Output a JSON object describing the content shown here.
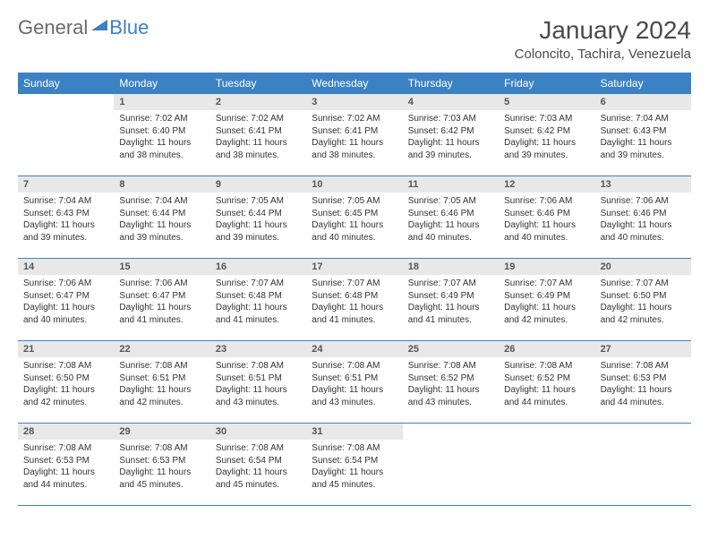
{
  "logo": {
    "text1": "General",
    "text2": "Blue"
  },
  "title": "January 2024",
  "location": "Coloncito, Tachira, Venezuela",
  "colors": {
    "header_bg": "#3b82c4",
    "header_text": "#ffffff",
    "daynum_bg": "#e8e8e8",
    "border": "#3b82c4",
    "logo_gray": "#6b6b6b",
    "logo_blue": "#3b82c4"
  },
  "weekdays": [
    "Sunday",
    "Monday",
    "Tuesday",
    "Wednesday",
    "Thursday",
    "Friday",
    "Saturday"
  ],
  "leading_blanks": 1,
  "days": [
    {
      "n": 1,
      "sunrise": "7:02 AM",
      "sunset": "6:40 PM",
      "daylight": "11 hours and 38 minutes."
    },
    {
      "n": 2,
      "sunrise": "7:02 AM",
      "sunset": "6:41 PM",
      "daylight": "11 hours and 38 minutes."
    },
    {
      "n": 3,
      "sunrise": "7:02 AM",
      "sunset": "6:41 PM",
      "daylight": "11 hours and 38 minutes."
    },
    {
      "n": 4,
      "sunrise": "7:03 AM",
      "sunset": "6:42 PM",
      "daylight": "11 hours and 39 minutes."
    },
    {
      "n": 5,
      "sunrise": "7:03 AM",
      "sunset": "6:42 PM",
      "daylight": "11 hours and 39 minutes."
    },
    {
      "n": 6,
      "sunrise": "7:04 AM",
      "sunset": "6:43 PM",
      "daylight": "11 hours and 39 minutes."
    },
    {
      "n": 7,
      "sunrise": "7:04 AM",
      "sunset": "6:43 PM",
      "daylight": "11 hours and 39 minutes."
    },
    {
      "n": 8,
      "sunrise": "7:04 AM",
      "sunset": "6:44 PM",
      "daylight": "11 hours and 39 minutes."
    },
    {
      "n": 9,
      "sunrise": "7:05 AM",
      "sunset": "6:44 PM",
      "daylight": "11 hours and 39 minutes."
    },
    {
      "n": 10,
      "sunrise": "7:05 AM",
      "sunset": "6:45 PM",
      "daylight": "11 hours and 40 minutes."
    },
    {
      "n": 11,
      "sunrise": "7:05 AM",
      "sunset": "6:46 PM",
      "daylight": "11 hours and 40 minutes."
    },
    {
      "n": 12,
      "sunrise": "7:06 AM",
      "sunset": "6:46 PM",
      "daylight": "11 hours and 40 minutes."
    },
    {
      "n": 13,
      "sunrise": "7:06 AM",
      "sunset": "6:46 PM",
      "daylight": "11 hours and 40 minutes."
    },
    {
      "n": 14,
      "sunrise": "7:06 AM",
      "sunset": "6:47 PM",
      "daylight": "11 hours and 40 minutes."
    },
    {
      "n": 15,
      "sunrise": "7:06 AM",
      "sunset": "6:47 PM",
      "daylight": "11 hours and 41 minutes."
    },
    {
      "n": 16,
      "sunrise": "7:07 AM",
      "sunset": "6:48 PM",
      "daylight": "11 hours and 41 minutes."
    },
    {
      "n": 17,
      "sunrise": "7:07 AM",
      "sunset": "6:48 PM",
      "daylight": "11 hours and 41 minutes."
    },
    {
      "n": 18,
      "sunrise": "7:07 AM",
      "sunset": "6:49 PM",
      "daylight": "11 hours and 41 minutes."
    },
    {
      "n": 19,
      "sunrise": "7:07 AM",
      "sunset": "6:49 PM",
      "daylight": "11 hours and 42 minutes."
    },
    {
      "n": 20,
      "sunrise": "7:07 AM",
      "sunset": "6:50 PM",
      "daylight": "11 hours and 42 minutes."
    },
    {
      "n": 21,
      "sunrise": "7:08 AM",
      "sunset": "6:50 PM",
      "daylight": "11 hours and 42 minutes."
    },
    {
      "n": 22,
      "sunrise": "7:08 AM",
      "sunset": "6:51 PM",
      "daylight": "11 hours and 42 minutes."
    },
    {
      "n": 23,
      "sunrise": "7:08 AM",
      "sunset": "6:51 PM",
      "daylight": "11 hours and 43 minutes."
    },
    {
      "n": 24,
      "sunrise": "7:08 AM",
      "sunset": "6:51 PM",
      "daylight": "11 hours and 43 minutes."
    },
    {
      "n": 25,
      "sunrise": "7:08 AM",
      "sunset": "6:52 PM",
      "daylight": "11 hours and 43 minutes."
    },
    {
      "n": 26,
      "sunrise": "7:08 AM",
      "sunset": "6:52 PM",
      "daylight": "11 hours and 44 minutes."
    },
    {
      "n": 27,
      "sunrise": "7:08 AM",
      "sunset": "6:53 PM",
      "daylight": "11 hours and 44 minutes."
    },
    {
      "n": 28,
      "sunrise": "7:08 AM",
      "sunset": "6:53 PM",
      "daylight": "11 hours and 44 minutes."
    },
    {
      "n": 29,
      "sunrise": "7:08 AM",
      "sunset": "6:53 PM",
      "daylight": "11 hours and 45 minutes."
    },
    {
      "n": 30,
      "sunrise": "7:08 AM",
      "sunset": "6:54 PM",
      "daylight": "11 hours and 45 minutes."
    },
    {
      "n": 31,
      "sunrise": "7:08 AM",
      "sunset": "6:54 PM",
      "daylight": "11 hours and 45 minutes."
    }
  ],
  "labels": {
    "sunrise": "Sunrise:",
    "sunset": "Sunset:",
    "daylight": "Daylight:"
  }
}
